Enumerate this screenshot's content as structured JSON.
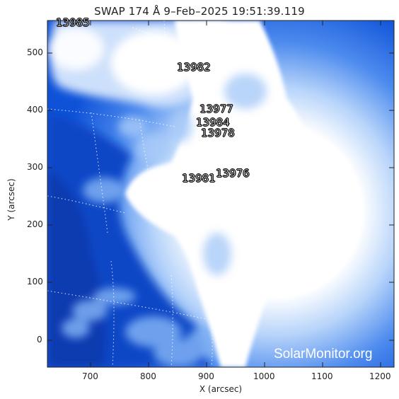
{
  "title": "SWAP 174 Å  9–Feb–2025 19:51:39.119",
  "axes": {
    "x_label": "X (arcsec)",
    "y_label": "Y (arcsec)",
    "x_ticks": [
      "700",
      "800",
      "900",
      "1000",
      "1100",
      "1200"
    ],
    "y_ticks": [
      "0",
      "100",
      "200",
      "300",
      "400",
      "500"
    ]
  },
  "regions": [
    {
      "label": "13985"
    },
    {
      "label": "13982"
    },
    {
      "label": "13977"
    },
    {
      "label": "13984"
    },
    {
      "label": "13978"
    },
    {
      "label": "13981"
    },
    {
      "label": "13976"
    }
  ],
  "watermark": "SolarMonitor.org",
  "colors": {
    "background_blue": "#0d4fd4",
    "dark_blue": "#0a3fb8",
    "mid_blue": "#3d7fea",
    "light_blue": "#9cc4f7",
    "white": "#ffffff"
  }
}
